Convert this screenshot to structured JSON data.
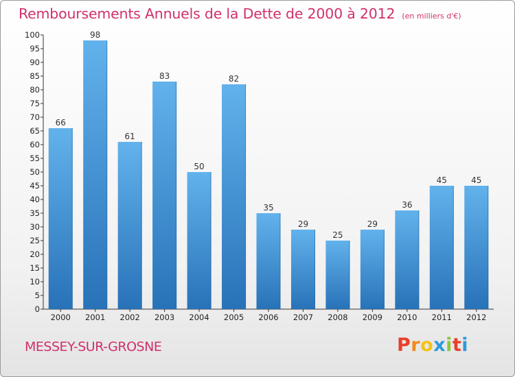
{
  "chart_title": "Remboursements Annuels de la Dette de 2000 à 2012",
  "chart_subtitle": "(en milliers d'€)",
  "commune": "MESSEY-SUR-GROSNE",
  "logo_text": "Proxiti",
  "colors": {
    "title": "#d0306c",
    "bar_light": "#62b2ec",
    "bar_dark": "#2872b8",
    "axis": "#333333",
    "logo_letters": [
      "#e8402a",
      "#f08a1c",
      "#f4c21a",
      "#2e9ad8",
      "#8cc63f",
      "#e8402a",
      "#2e9ad8"
    ]
  },
  "chart_data": {
    "type": "bar",
    "title": "Remboursements Annuels de la Dette de 2000 à 2012",
    "subtitle": "(en milliers d'€)",
    "xlabel": "",
    "ylabel": "",
    "categories": [
      "2000",
      "2001",
      "2002",
      "2003",
      "2004",
      "2005",
      "2006",
      "2007",
      "2008",
      "2009",
      "2010",
      "2011",
      "2012"
    ],
    "values": [
      66,
      98,
      61,
      83,
      50,
      82,
      35,
      29,
      25,
      29,
      36,
      45,
      45
    ],
    "ylim": [
      0,
      100
    ],
    "yticks": [
      0,
      5,
      10,
      15,
      20,
      25,
      30,
      35,
      40,
      45,
      50,
      55,
      60,
      65,
      70,
      75,
      80,
      85,
      90,
      95,
      100
    ],
    "grid": false,
    "data_labels": true,
    "legend": "none"
  }
}
